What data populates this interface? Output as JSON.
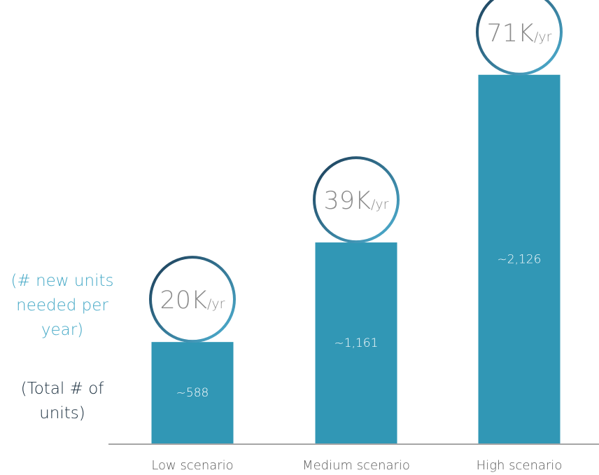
{
  "colors": {
    "bar": "#3197b5",
    "axis": "#a6a6a6",
    "rate_text": "#8c8c8c",
    "label_text": "#595959",
    "left_label_accent": "#44a8c6",
    "left_label_dark": "#1b2f3f",
    "ring_start": "#1b3b55",
    "ring_end": "#4fb3d5"
  },
  "side_labels": {
    "rate": "(# new units needed per year)",
    "total": "(Total # of units)"
  },
  "chart_data": {
    "type": "bar",
    "title": "",
    "xlabel": "",
    "ylabel": "",
    "categories": [
      "Low scenario",
      "Medium scenario",
      "High scenario"
    ],
    "series": [
      {
        "values": [
          588,
          1161,
          2126
        ],
        "value_labels": [
          "~588",
          "~1,161",
          "~2,126"
        ]
      }
    ],
    "annual_rates": [
      {
        "value": "20K",
        "unit": "/yr"
      },
      {
        "value": "39K",
        "unit": "/yr"
      },
      {
        "value": "71K",
        "unit": "/yr"
      }
    ],
    "ylim": [
      0,
      2250
    ],
    "grid": false,
    "legend": "none"
  }
}
